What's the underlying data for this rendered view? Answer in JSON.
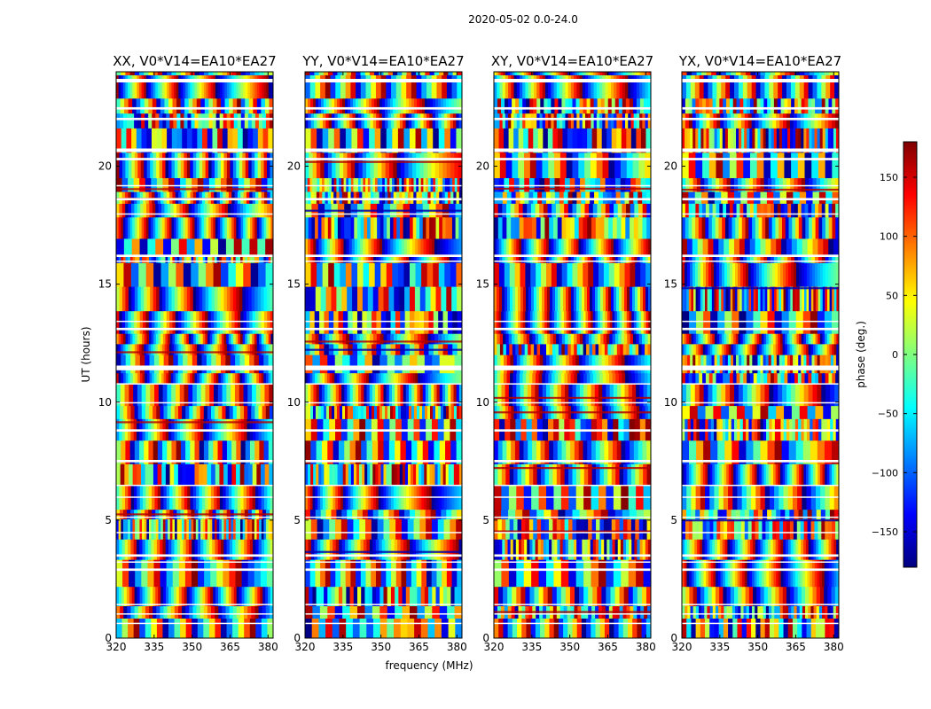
{
  "figure": {
    "suptitle": "2020-05-02 0.0-24.0"
  },
  "chart_data": {
    "type": "heatmap",
    "title": "2020-05-02 0.0-24.0",
    "xlabel": "frequency (MHz)",
    "ylabel": "UT (hours)",
    "xlim": [
      320,
      382
    ],
    "ylim": [
      0,
      24
    ],
    "x_ticks": [
      "320",
      "335",
      "350",
      "365",
      "380"
    ],
    "y_ticks": [
      "0",
      "5",
      "10",
      "15",
      "20"
    ],
    "panels": [
      {
        "title": "XX, V0*V14=EA10*EA27",
        "polarization": "XX"
      },
      {
        "title": "YY, V0*V14=EA10*EA27",
        "polarization": "YY"
      },
      {
        "title": "XY, V0*V14=EA10*EA27",
        "polarization": "XY"
      },
      {
        "title": "YX, V0*V14=EA10*EA27",
        "polarization": "YX"
      }
    ],
    "colorbar": {
      "label": "phase (deg.)",
      "range": [
        -180,
        180
      ],
      "ticks": [
        "150",
        "100",
        "50",
        "0",
        "−50",
        "−100",
        "−150"
      ],
      "colormap": "jet",
      "colors": [
        "#00007f",
        "#0000ff",
        "#007fff",
        "#00ffff",
        "#7fff7f",
        "#ffff00",
        "#ff7f00",
        "#ff0000",
        "#7f0000"
      ]
    },
    "gaps_ut_hours": [
      [
        23.55,
        23.7
      ],
      [
        22.4,
        22.5
      ],
      [
        21.95,
        22.05
      ],
      [
        20.6,
        20.75
      ],
      [
        20.25,
        20.35
      ],
      [
        19.15,
        19.2
      ],
      [
        18.55,
        18.65
      ],
      [
        17.95,
        18.0
      ],
      [
        16.15,
        16.25
      ],
      [
        15.95,
        16.0
      ],
      [
        13.4,
        13.45
      ],
      [
        13.05,
        13.15
      ],
      [
        11.35,
        11.55
      ],
      [
        10.75,
        10.8
      ],
      [
        9.95,
        10.0
      ],
      [
        8.75,
        8.85
      ],
      [
        7.45,
        7.55
      ],
      [
        6.45,
        6.5
      ],
      [
        5.95,
        6.0
      ],
      [
        5.1,
        5.15
      ],
      [
        4.45,
        4.5
      ],
      [
        3.45,
        3.55
      ],
      [
        3.2,
        3.25
      ],
      [
        2.85,
        2.95
      ],
      [
        1.4,
        1.45
      ],
      [
        1.0,
        1.05
      ],
      [
        0.6,
        0.65
      ]
    ]
  }
}
